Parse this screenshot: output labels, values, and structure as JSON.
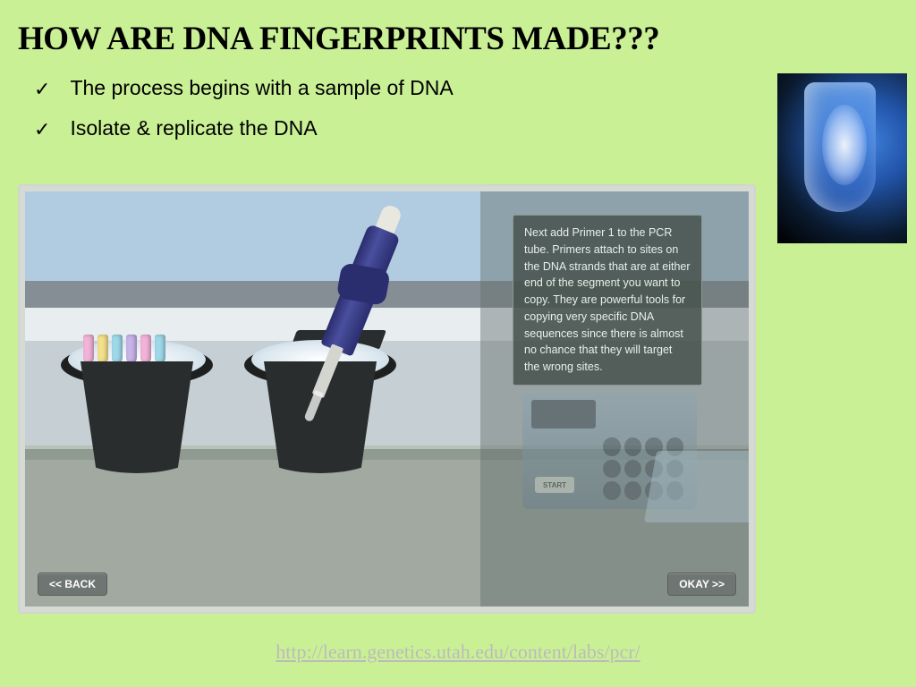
{
  "title": "HOW ARE DNA FINGERPRINTS MADE???",
  "bullets": [
    "The process begins with a sample of DNA",
    "Isolate & replicate the DNA"
  ],
  "sim": {
    "info_text": "Next add Primer 1 to the PCR tube. Primers attach to sites on the DNA strands that are at either end of the segment you want to copy. They are powerful tools for copying very specific DNA sequences since there is almost no chance that they will target the wrong sites.",
    "back_label": "<< BACK",
    "okay_label": "OKAY >>",
    "start_label": "START",
    "tube_colors": [
      "#f3b3d9",
      "#f3e08a",
      "#9fd8e8",
      "#c8b3e8",
      "#f3b3d9",
      "#9fd8e8"
    ],
    "background": {
      "sky": "#b1cce0",
      "bench": "#a1a9a1",
      "bucket": "#2a2d2d",
      "pipette": "#2a2d6e"
    }
  },
  "tube_photo": {
    "bg_dark": "#0a1a2e",
    "tube_blue": "#4b88e2"
  },
  "link": "http://learn.genetics.utah.edu/content/labs/pcr/",
  "colors": {
    "page_bg": "#caf096",
    "link": "#bbbbbb"
  }
}
